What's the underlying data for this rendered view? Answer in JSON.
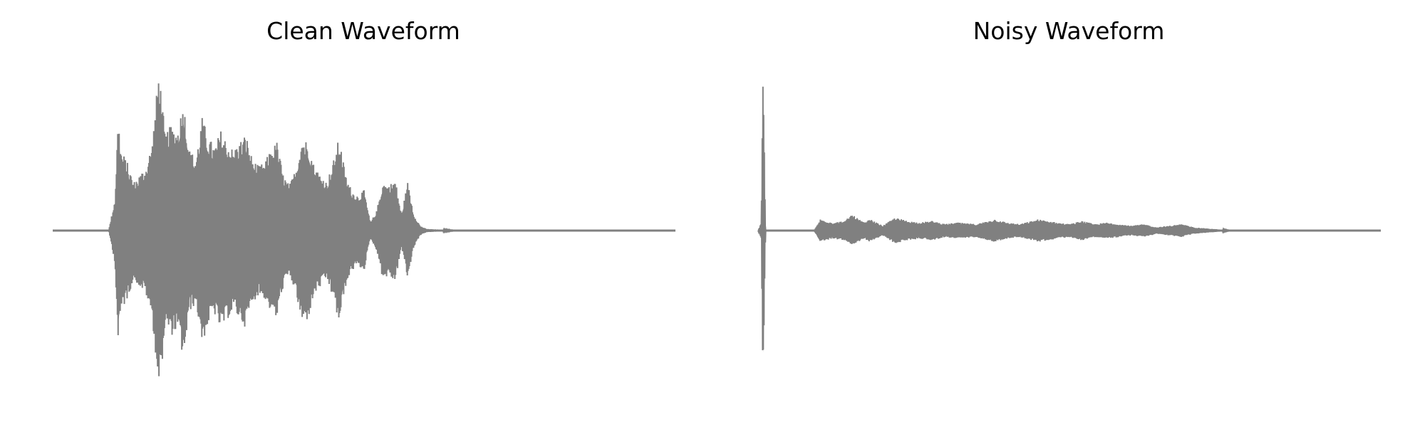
{
  "colors": {
    "waveform": "#808080",
    "background": "#ffffff",
    "title": "#000000"
  },
  "chart_data": [
    {
      "type": "line",
      "title": "Clean Waveform",
      "xlabel": "",
      "ylabel": "",
      "axes_visible": false,
      "grid": false,
      "xlim": [
        0,
        1
      ],
      "ylim": [
        -1,
        1
      ],
      "series": [
        {
          "color": "#808080",
          "envelope_x": [
            0.0,
            0.09,
            0.1,
            0.105,
            0.11,
            0.12,
            0.13,
            0.14,
            0.15,
            0.16,
            0.17,
            0.175,
            0.18,
            0.19,
            0.2,
            0.21,
            0.22,
            0.23,
            0.24,
            0.25,
            0.26,
            0.27,
            0.28,
            0.29,
            0.3,
            0.31,
            0.32,
            0.33,
            0.34,
            0.35,
            0.36,
            0.37,
            0.38,
            0.39,
            0.4,
            0.41,
            0.42,
            0.43,
            0.44,
            0.45,
            0.46,
            0.47,
            0.48,
            0.49,
            0.5,
            0.51,
            0.52,
            0.53,
            0.54,
            0.55,
            0.56,
            0.57,
            0.58,
            0.59,
            0.6,
            0.65,
            0.7,
            0.8,
            0.9,
            1.0
          ],
          "envelope_y": [
            0.0,
            0.0,
            0.2,
            0.7,
            0.5,
            0.42,
            0.3,
            0.35,
            0.4,
            0.55,
            0.98,
            0.85,
            0.6,
            0.65,
            0.62,
            0.8,
            0.5,
            0.45,
            0.7,
            0.58,
            0.52,
            0.62,
            0.55,
            0.5,
            0.55,
            0.6,
            0.45,
            0.4,
            0.42,
            0.5,
            0.55,
            0.35,
            0.28,
            0.38,
            0.58,
            0.55,
            0.4,
            0.35,
            0.3,
            0.42,
            0.58,
            0.35,
            0.25,
            0.22,
            0.25,
            0.05,
            0.12,
            0.3,
            0.28,
            0.32,
            0.1,
            0.3,
            0.1,
            0.03,
            0.01,
            0.0,
            0.0,
            0.0,
            0.0,
            0.0
          ]
        }
      ]
    },
    {
      "type": "line",
      "title": "Noisy Waveform",
      "xlabel": "",
      "ylabel": "",
      "axes_visible": false,
      "grid": false,
      "xlim": [
        0,
        1
      ],
      "ylim": [
        -1,
        1
      ],
      "series": [
        {
          "color": "#808080",
          "envelope_x": [
            0.0,
            0.005,
            0.008,
            0.012,
            0.09,
            0.1,
            0.12,
            0.14,
            0.15,
            0.17,
            0.18,
            0.2,
            0.22,
            0.24,
            0.26,
            0.28,
            0.3,
            0.32,
            0.35,
            0.38,
            0.4,
            0.42,
            0.45,
            0.48,
            0.5,
            0.52,
            0.54,
            0.56,
            0.58,
            0.6,
            0.62,
            0.64,
            0.66,
            0.68,
            0.7,
            0.73,
            0.76,
            1.0
          ],
          "envelope_y": [
            0.0,
            0.05,
            1.0,
            0.0,
            0.0,
            0.07,
            0.05,
            0.06,
            0.1,
            0.05,
            0.07,
            0.03,
            0.08,
            0.06,
            0.05,
            0.06,
            0.04,
            0.05,
            0.04,
            0.07,
            0.05,
            0.04,
            0.07,
            0.05,
            0.04,
            0.06,
            0.04,
            0.05,
            0.04,
            0.03,
            0.04,
            0.02,
            0.03,
            0.04,
            0.02,
            0.01,
            0.0,
            0.0
          ]
        }
      ]
    }
  ]
}
